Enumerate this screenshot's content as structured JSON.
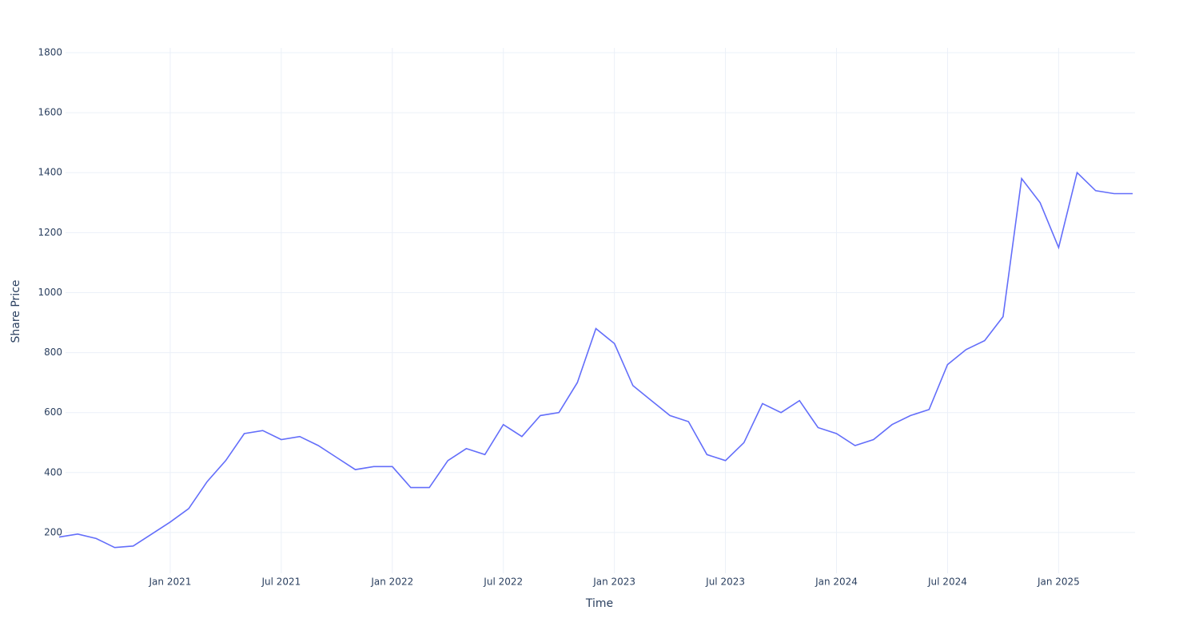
{
  "chart_data": {
    "type": "line",
    "x_label": "Time",
    "y_label": "Share Price",
    "x": [
      "2020-07",
      "2020-08",
      "2020-09",
      "2020-10",
      "2020-11",
      "2020-12",
      "2021-01",
      "2021-02",
      "2021-03",
      "2021-04",
      "2021-05",
      "2021-06",
      "2021-07",
      "2021-08",
      "2021-09",
      "2021-10",
      "2021-11",
      "2021-12",
      "2022-01",
      "2022-02",
      "2022-03",
      "2022-04",
      "2022-05",
      "2022-06",
      "2022-07",
      "2022-08",
      "2022-09",
      "2022-10",
      "2022-11",
      "2022-12",
      "2023-01",
      "2023-02",
      "2023-03",
      "2023-04",
      "2023-05",
      "2023-06",
      "2023-07",
      "2023-08",
      "2023-09",
      "2023-10",
      "2023-11",
      "2023-12",
      "2024-01",
      "2024-02",
      "2024-03",
      "2024-04",
      "2024-05",
      "2024-06",
      "2024-07",
      "2024-08",
      "2024-09",
      "2024-10",
      "2024-11",
      "2024-12",
      "2025-01",
      "2025-02",
      "2025-03",
      "2025-04",
      "2025-05"
    ],
    "series": [
      {
        "name": "Share Price",
        "color": "#636efa",
        "values": [
          185,
          195,
          180,
          150,
          155,
          195,
          235,
          280,
          370,
          440,
          530,
          540,
          510,
          520,
          490,
          450,
          410,
          420,
          420,
          350,
          350,
          440,
          480,
          460,
          560,
          520,
          590,
          600,
          700,
          880,
          830,
          690,
          640,
          590,
          570,
          460,
          440,
          500,
          630,
          600,
          640,
          550,
          530,
          490,
          510,
          560,
          590,
          610,
          760,
          810,
          840,
          920,
          1380,
          1300,
          1150,
          1400,
          1340,
          1330,
          1330
        ]
      }
    ],
    "xlim": [
      "2020-07",
      "2025-05"
    ],
    "xticks": [
      {
        "value": "2021-01",
        "label": "Jan 2021"
      },
      {
        "value": "2021-07",
        "label": "Jul 2021"
      },
      {
        "value": "2022-01",
        "label": "Jan 2022"
      },
      {
        "value": "2022-07",
        "label": "Jul 2022"
      },
      {
        "value": "2023-01",
        "label": "Jan 2023"
      },
      {
        "value": "2023-07",
        "label": "Jul 2023"
      },
      {
        "value": "2024-01",
        "label": "Jan 2024"
      },
      {
        "value": "2024-07",
        "label": "Jul 2024"
      },
      {
        "value": "2025-01",
        "label": "Jan 2025"
      }
    ],
    "ylim": [
      64,
      1816
    ],
    "yticks": [
      200,
      400,
      600,
      800,
      1000,
      1200,
      1400,
      1600,
      1800
    ],
    "grid": true
  }
}
